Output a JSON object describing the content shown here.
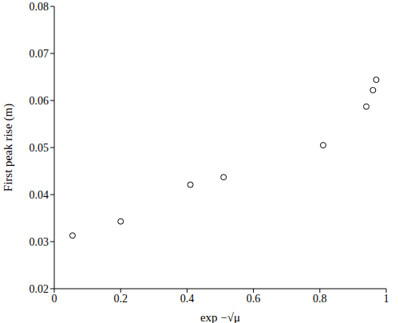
{
  "chart_data": {
    "type": "scatter",
    "x_label": "exp −√μ",
    "y_label": "First peak rise (m)",
    "x": [
      0.055,
      0.2,
      0.41,
      0.51,
      0.81,
      0.94,
      0.96,
      0.97
    ],
    "values": [
      0.0313,
      0.0343,
      0.0421,
      0.0437,
      0.0505,
      0.0587,
      0.0622,
      0.0644
    ],
    "xlim": [
      0,
      1
    ],
    "xticks": [
      0,
      0.2,
      0.4,
      0.6,
      0.8,
      1
    ],
    "ylim": [
      0.02,
      0.08
    ],
    "yticks": [
      0.02,
      0.03,
      0.04,
      0.05,
      0.06,
      0.07,
      0.08
    ],
    "color": "#000000",
    "marker": "circle",
    "grid": false
  }
}
